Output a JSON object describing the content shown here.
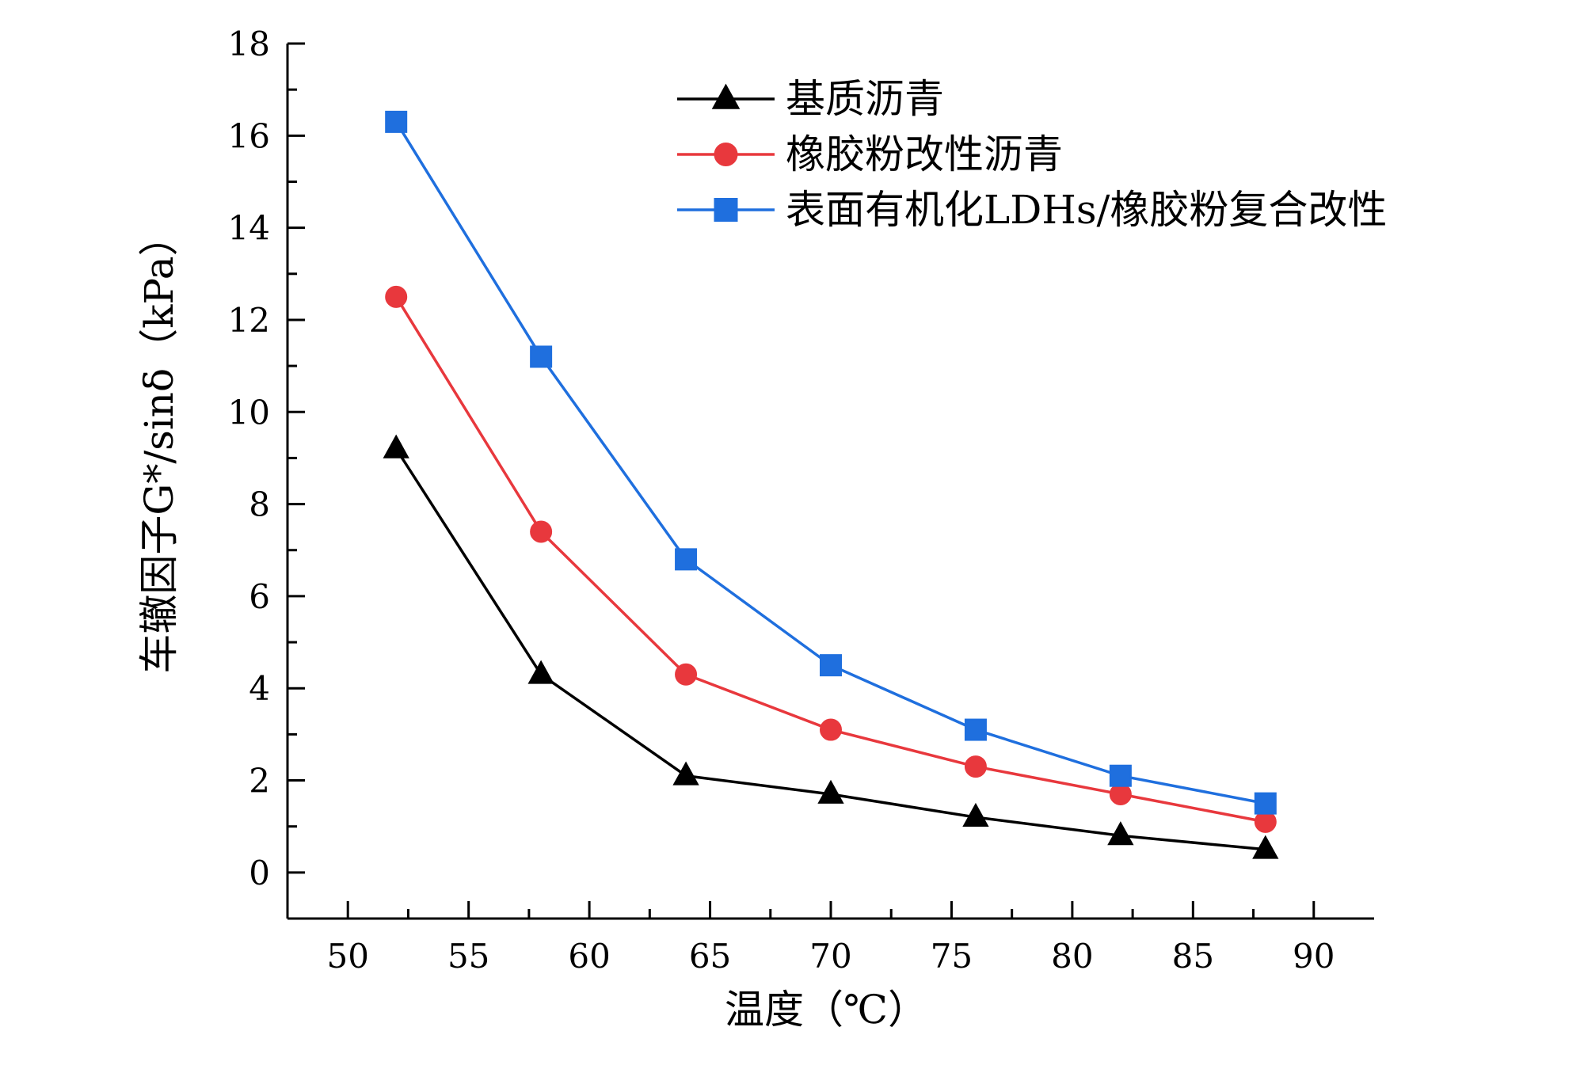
{
  "chart_data": {
    "type": "line",
    "title": "",
    "xlabel": "温度（℃）",
    "ylabel": "车辙因子G*/sinδ（kPa）",
    "xlim": [
      47.5,
      92.5
    ],
    "ylim": [
      -1,
      18
    ],
    "xticks": [
      50,
      55,
      60,
      65,
      70,
      75,
      80,
      85,
      90
    ],
    "yticks": [
      0,
      2,
      4,
      6,
      8,
      10,
      12,
      14,
      16,
      18
    ],
    "x": [
      52,
      58,
      64,
      70,
      76,
      82,
      88
    ],
    "grid": false,
    "legend_position": "top-right",
    "series": [
      {
        "name": "基质沥青",
        "marker": "triangle",
        "color": "#000000",
        "values": [
          9.2,
          4.3,
          2.1,
          1.7,
          1.2,
          0.8,
          0.5
        ]
      },
      {
        "name": "橡胶粉改性沥青",
        "marker": "circle",
        "color": "#e8383d",
        "values": [
          12.5,
          7.4,
          4.3,
          3.1,
          2.3,
          1.7,
          1.1
        ]
      },
      {
        "name": "表面有机化LDHs/橡胶粉复合改性",
        "marker": "square",
        "color": "#1f6fde",
        "values": [
          16.3,
          11.2,
          6.8,
          4.5,
          3.1,
          2.1,
          1.5
        ]
      }
    ]
  }
}
